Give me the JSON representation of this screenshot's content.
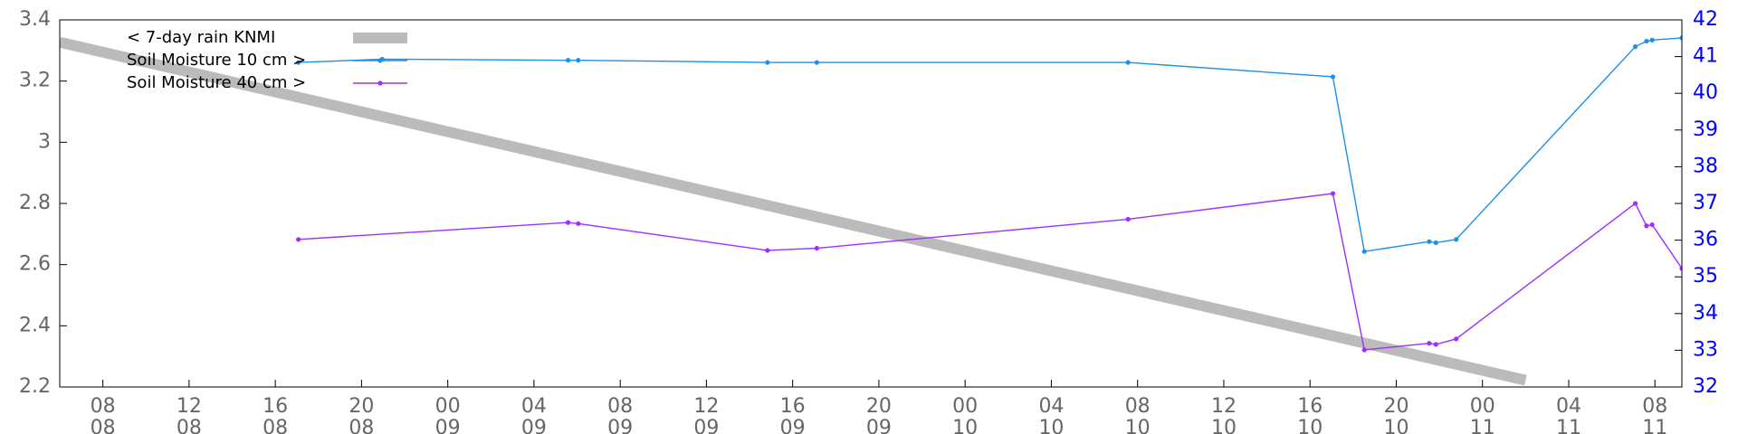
{
  "chart_data": {
    "type": "line",
    "xlim": [
      6,
      81.25
    ],
    "xticks": [
      {
        "value": 8,
        "label": "08"
      },
      {
        "value": 12,
        "label": "12"
      },
      {
        "value": 16,
        "label": "16"
      },
      {
        "value": 20,
        "label": "20"
      },
      {
        "value": 24,
        "label": "00"
      },
      {
        "value": 28,
        "label": "04"
      },
      {
        "value": 32,
        "label": "08"
      },
      {
        "value": 36,
        "label": "12"
      },
      {
        "value": 40,
        "label": "16"
      },
      {
        "value": 44,
        "label": "20"
      },
      {
        "value": 48,
        "label": "00"
      },
      {
        "value": 52,
        "label": "04"
      },
      {
        "value": 56,
        "label": "08"
      },
      {
        "value": 60,
        "label": "12"
      },
      {
        "value": 64,
        "label": "16"
      },
      {
        "value": 68,
        "label": "20"
      },
      {
        "value": 72,
        "label": "00"
      },
      {
        "value": 76,
        "label": "04"
      },
      {
        "value": 80,
        "label": "08"
      }
    ],
    "xtick_days": [
      "08",
      "08",
      "08",
      "08",
      "09",
      "09",
      "09",
      "09",
      "09",
      "09",
      "10",
      "10",
      "10",
      "10",
      "10",
      "10",
      "11",
      "11",
      "11"
    ],
    "ylim": [
      2.2,
      3.4
    ],
    "yticks": [
      2.2,
      2.4,
      2.6,
      2.8,
      3,
      3.2,
      3.4
    ],
    "y2lim": [
      32,
      42
    ],
    "y2ticks": [
      32,
      33,
      34,
      35,
      36,
      37,
      38,
      39,
      40,
      41,
      42
    ],
    "legend": "top-left",
    "series": [
      {
        "name": "< 7-day rain KNMI",
        "color": "#bbbbbb",
        "x": [
          6,
          74.0
        ],
        "values": [
          3.327,
          2.222
        ]
      },
      {
        "name": "Soil Moisture 10 cm >",
        "color": "#1e90e8",
        "axis": "y2",
        "x": [
          17.07,
          20.96,
          29.58,
          30.05,
          38.83,
          41.12,
          55.56,
          65.06,
          66.52,
          69.53,
          69.84,
          70.78,
          79.09,
          79.61,
          79.87,
          81.25
        ],
        "values": [
          40.84,
          40.93,
          40.9,
          40.9,
          40.84,
          40.84,
          40.84,
          40.45,
          35.69,
          35.96,
          35.93,
          36.02,
          41.27,
          41.42,
          41.45,
          41.51
        ]
      },
      {
        "name": "Soil Moisture 40 cm >",
        "color": "#9b30ff",
        "axis": "y2",
        "x": [
          17.07,
          29.58,
          30.05,
          38.83,
          41.12,
          55.56,
          65.06,
          66.52,
          69.53,
          69.84,
          70.78,
          79.09,
          79.61,
          79.87,
          81.25
        ],
        "values": [
          36.02,
          36.48,
          36.45,
          35.72,
          35.78,
          36.57,
          37.27,
          33.01,
          33.19,
          33.16,
          33.31,
          37.0,
          36.39,
          36.42,
          35.23
        ]
      }
    ]
  }
}
